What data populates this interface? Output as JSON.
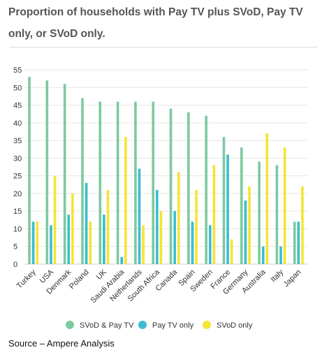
{
  "title": "Proportion of households with Pay TV plus SVoD, Pay TV only, or SVoD only.",
  "source": "Source – Ampere Analysis",
  "chart_data": {
    "type": "bar",
    "title": "Proportion of households with Pay TV plus SVoD, Pay TV only, or SVoD only.",
    "xlabel": "",
    "ylabel": "",
    "ylim": [
      0,
      55
    ],
    "yticks": [
      0,
      5,
      10,
      15,
      20,
      25,
      30,
      35,
      40,
      45,
      50,
      55
    ],
    "grid": true,
    "legend_position": "bottom",
    "categories": [
      "Turkey",
      "USA",
      "Denmark",
      "Poland",
      "UK",
      "Saudi Arabia",
      "Netherlands",
      "South Africa",
      "Canada",
      "Spain",
      "Sweden",
      "France",
      "Germany",
      "Australia",
      "Italy",
      "Japan"
    ],
    "series": [
      {
        "name": "SVoD & Pay TV",
        "color": "#7dc9a0",
        "values": [
          53,
          52,
          51,
          47,
          46,
          46,
          46,
          46,
          44,
          43,
          42,
          36,
          33,
          29,
          28,
          12
        ]
      },
      {
        "name": "Pay TV only",
        "color": "#3bbdd0",
        "values": [
          12,
          11,
          14,
          23,
          14,
          2,
          27,
          21,
          15,
          12,
          11,
          31,
          18,
          5,
          5,
          12
        ]
      },
      {
        "name": "SVoD only",
        "color": "#f4e535",
        "values": [
          12,
          25,
          20,
          12,
          21,
          36,
          11,
          15,
          26,
          21,
          28,
          7,
          22,
          37,
          33,
          22
        ]
      }
    ]
  }
}
